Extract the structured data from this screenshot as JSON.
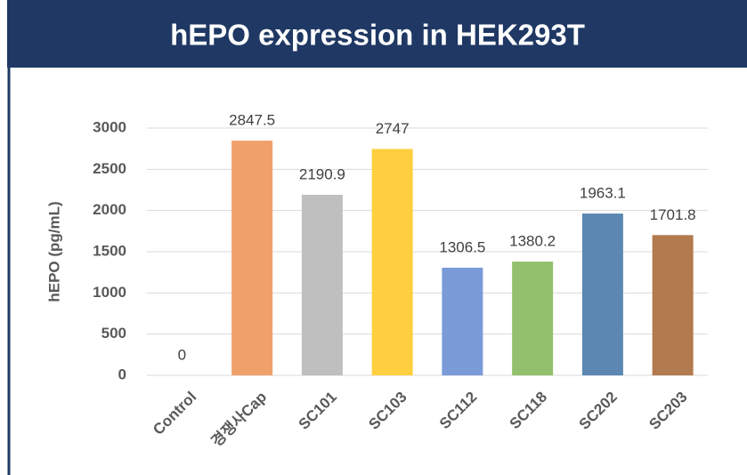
{
  "chart_data": {
    "type": "bar",
    "title": "hEPO expression in HEK293T",
    "y_label": "hEPO (pg/mL)",
    "categories": [
      "Control",
      "경쟁사Cap",
      "SC101",
      "SC103",
      "SC112",
      "SC118",
      "SC202",
      "SC203"
    ],
    "values": [
      0,
      2847.5,
      2190.9,
      2747,
      1306.5,
      1380.2,
      1963.1,
      1701.8
    ],
    "colors": [
      "#9e9e9e",
      "#f0a06b",
      "#bfbfbf",
      "#ffcf3f",
      "#7b9bd8",
      "#93c06c",
      "#5b87b2",
      "#b27a4f"
    ],
    "ylim": [
      0,
      3000
    ],
    "yticks": [
      0,
      500,
      1000,
      1500,
      2000,
      2500,
      3000
    ],
    "grid": true
  }
}
